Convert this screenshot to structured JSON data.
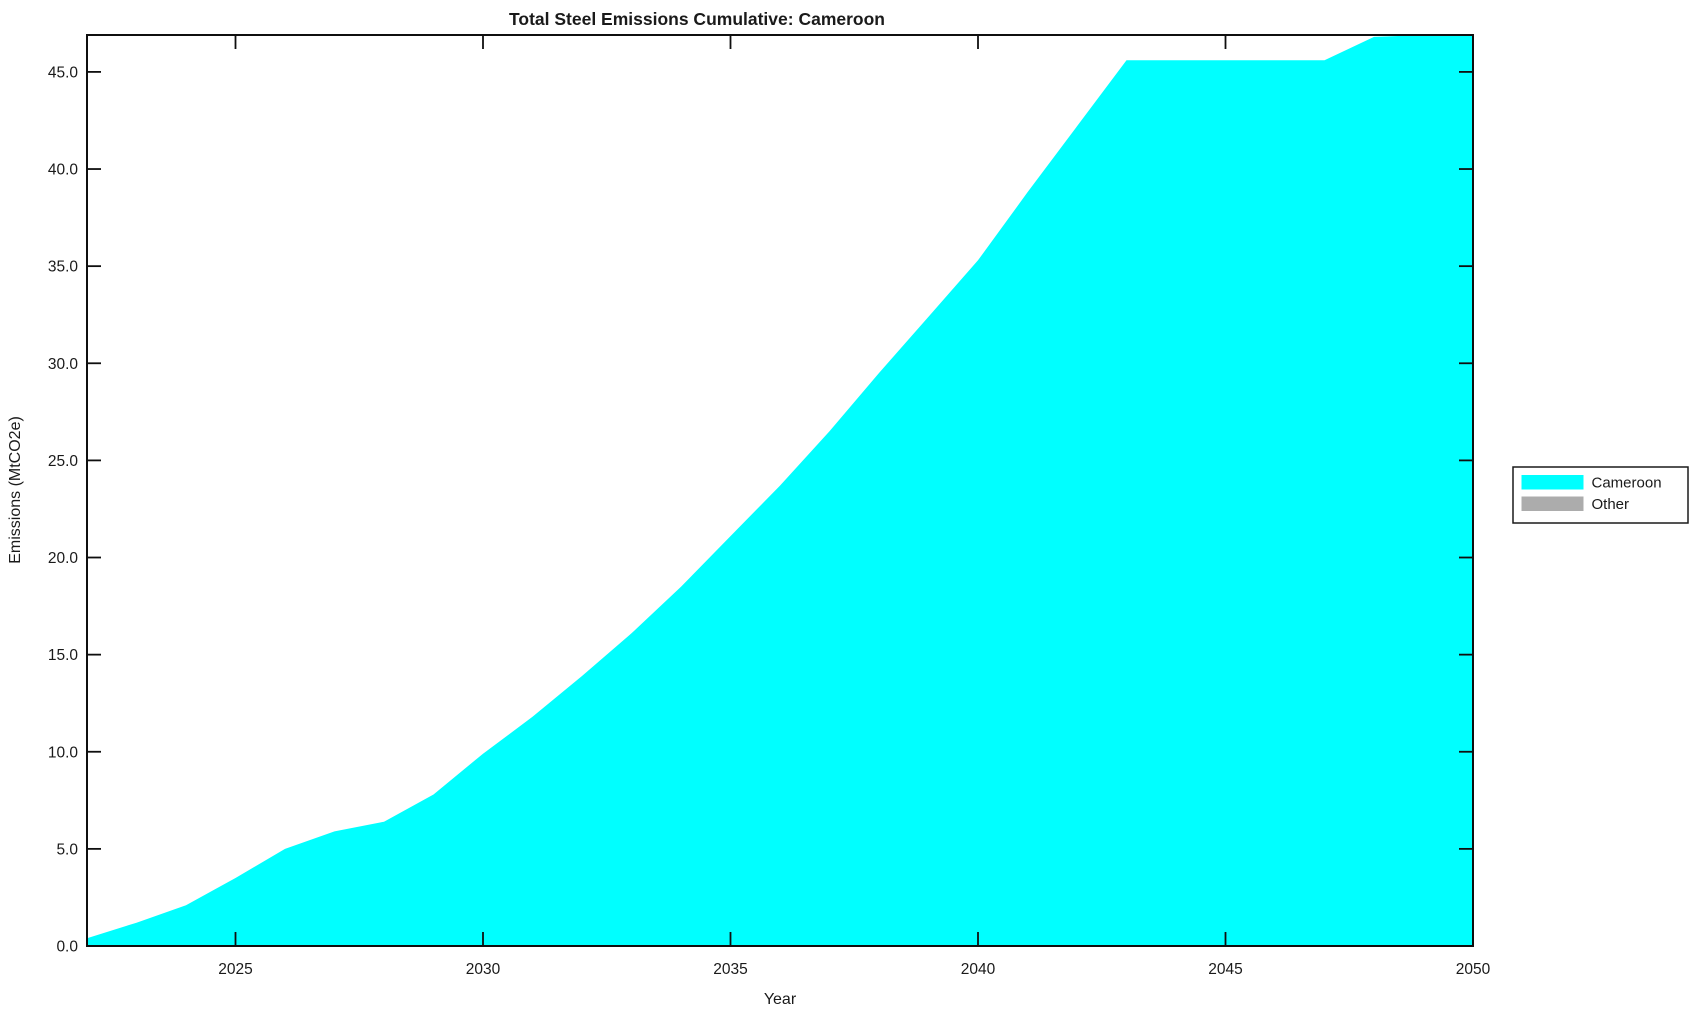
{
  "figure": {
    "title": "Total Steel Emissions Cumulative: Cameroon"
  },
  "chart_data": {
    "type": "area",
    "title": "Total Steel Emissions Cumulative: Cameroon",
    "xlabel": "Year",
    "ylabel": "Emissions (MtCO2e)",
    "xlim": [
      2022,
      2050
    ],
    "ylim": [
      0,
      46.9
    ],
    "xticks": [
      2025,
      2030,
      2035,
      2040,
      2045,
      2050
    ],
    "yticks": [
      0,
      5,
      10,
      15,
      20,
      25,
      30,
      35,
      40,
      45
    ],
    "ytick_labels": [
      "0.0",
      "5.0",
      "10.0",
      "15.0",
      "20.0",
      "25.0",
      "30.0",
      "35.0",
      "40.0",
      "45.0"
    ],
    "grid": false,
    "legend_position": "outside-right-center",
    "x": [
      2022,
      2023,
      2024,
      2025,
      2026,
      2027,
      2028,
      2029,
      2030,
      2031,
      2032,
      2033,
      2034,
      2035,
      2036,
      2037,
      2038,
      2039,
      2040,
      2041,
      2042,
      2043,
      2044,
      2045,
      2046,
      2047,
      2048,
      2049,
      2050
    ],
    "series": [
      {
        "name": "Cameroon",
        "color": "#00ffff",
        "values": [
          0.4,
          1.2,
          2.1,
          3.5,
          5.0,
          5.9,
          6.4,
          7.8,
          9.9,
          11.8,
          13.9,
          16.1,
          18.5,
          21.1,
          23.7,
          26.5,
          29.5,
          32.4,
          35.3,
          38.8,
          42.2,
          45.6,
          45.6,
          45.6,
          45.6,
          45.6,
          46.8,
          46.9,
          46.9
        ]
      },
      {
        "name": "Other",
        "color": "#acacac",
        "values": [
          0,
          0,
          0,
          0,
          0,
          0,
          0,
          0,
          0,
          0,
          0,
          0,
          0,
          0,
          0,
          0,
          0,
          0,
          0,
          0,
          0,
          0,
          0,
          0,
          0,
          0,
          0,
          0,
          0
        ]
      }
    ]
  }
}
